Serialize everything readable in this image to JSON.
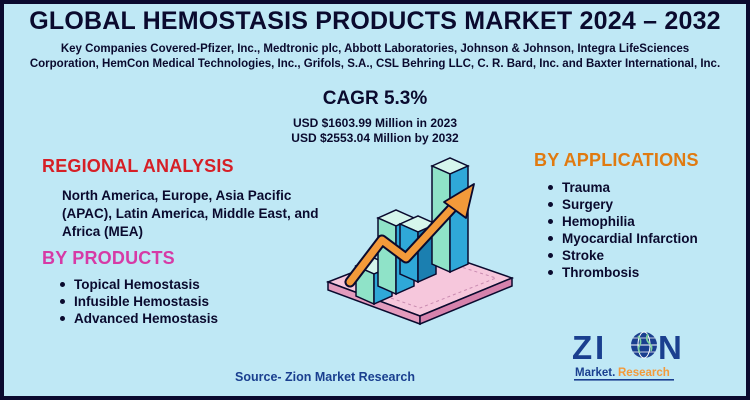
{
  "title": "GLOBAL HEMOSTASIS PRODUCTS MARKET 2024 – 2032",
  "companies": {
    "line1": "Key Companies Covered-Pfizer, Inc., Medtronic plc, Abbott Laboratories, Johnson & Johnson, Integra LifeSciences",
    "line2": "Corporation, HemCon Medical Technologies, Inc., Grifols, S.A., CSL Behring LLC, C. R. Bard, Inc. and Baxter International, Inc."
  },
  "cagr": "CAGR 5.3%",
  "stats": {
    "line1": "USD $1603.99 Million in 2023",
    "line2": "USD $2553.04 Million by 2032"
  },
  "regional": {
    "heading": "REGIONAL ANALYSIS",
    "text": "North America, Europe, Asia Pacific (APAC), Latin America, Middle East, and Africa (MEA)"
  },
  "products": {
    "heading": "BY PRODUCTS",
    "items": [
      "Topical Hemostasis",
      "Infusible Hemostasis",
      "Advanced Hemostasis"
    ]
  },
  "applications": {
    "heading": "BY APPLICATIONS",
    "items": [
      "Trauma",
      "Surgery",
      "Hemophilia",
      "Myocardial Infarction",
      "Stroke",
      "Thrombosis"
    ]
  },
  "source": "Source- Zion Market Research",
  "logo": {
    "word": "ZION",
    "sub": "Market.Research"
  },
  "colors": {
    "background": "#bfe8f5",
    "navy": "#0a0a2e",
    "regional_red": "#d61f26",
    "products_pink": "#d63aa6",
    "apps_orange": "#e07a10",
    "bar_mint": "#8fe3c8",
    "bar_blue": "#2fa8d8",
    "arrow_orange": "#f39a3a",
    "platform_pink": "#f6c7dc"
  },
  "icons": [
    "bar-chart-growth-illustration",
    "up-arrow-icon",
    "globe-icon"
  ]
}
